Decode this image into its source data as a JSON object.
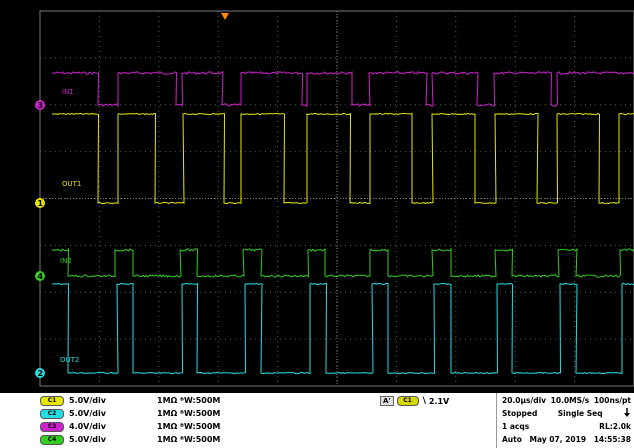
{
  "colors": {
    "ch1": "#e6e600",
    "ch2": "#22dde3",
    "ch3": "#cc22cc",
    "ch4": "#33cc22",
    "grid": "#5a5a5a",
    "trigger_marker": "#ff8c00"
  },
  "waveforms": {
    "in1_label": "IN1",
    "out1_label": "OUT1",
    "in2_label": "IN2",
    "out2_label": "OUT2"
  },
  "markers": {
    "ch3": "3",
    "ch1": "1",
    "ch4": "4",
    "ch2": "2"
  },
  "channels": [
    {
      "badge": "C1",
      "scale": "5.0V/div",
      "impedance": "1MΩ  ᴮW:500M",
      "color": "#e6e600"
    },
    {
      "badge": "C2",
      "scale": "5.0V/div",
      "impedance": "1MΩ  ᴮW:500M",
      "color": "#22dde3"
    },
    {
      "badge": "C3",
      "scale": "4.0V/div",
      "impedance": "1MΩ  ᴮW:500M",
      "color": "#cc22cc"
    },
    {
      "badge": "C4",
      "scale": "5.0V/div",
      "impedance": "1MΩ  ᴮW:500M",
      "color": "#33cc22"
    }
  ],
  "trigger": {
    "mode": "A'",
    "channel": "C1",
    "slope": "\\",
    "level": "2.1V"
  },
  "acquisition": {
    "timebase": "20.0µs/div",
    "sample_rate": "10.0MS/s",
    "resolution": "100ns/pt",
    "state": "Stopped",
    "mode": "Single Seq",
    "arrow_icon": "down-arrow-icon",
    "acqs": "1 acqs",
    "record_length": "RL:2.0k",
    "trigger_mode": "Auto",
    "date": "May 07, 2019",
    "time": "14:55:38"
  }
}
